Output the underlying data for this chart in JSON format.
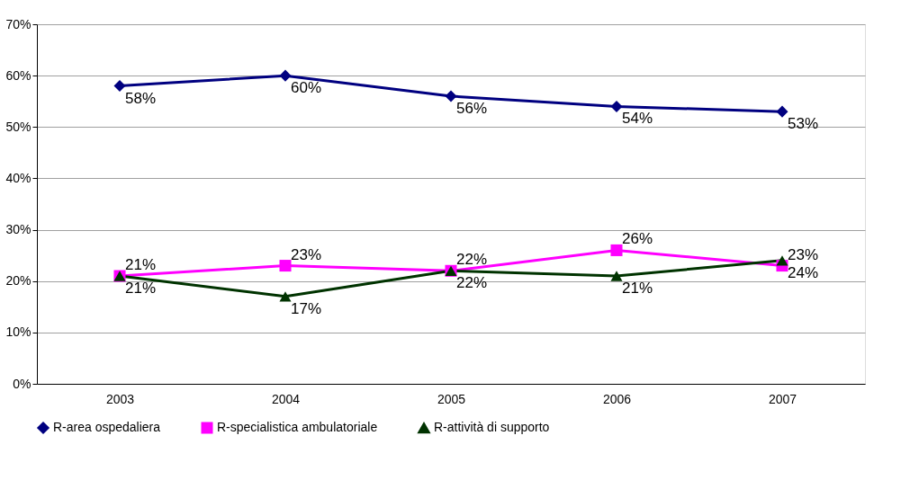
{
  "chart_data": {
    "type": "line",
    "categories": [
      "2003",
      "2004",
      "2005",
      "2006",
      "2007"
    ],
    "series": [
      {
        "name": "R-area ospedaliera",
        "color": "#000080",
        "marker": "diamond",
        "values": [
          58,
          60,
          56,
          54,
          53
        ],
        "value_labels": [
          "58%",
          "60%",
          "56%",
          "54%",
          "53%"
        ]
      },
      {
        "name": "R-specialistica ambulatoriale",
        "color": "#ff00ff",
        "marker": "square",
        "values": [
          21,
          23,
          22,
          26,
          23
        ],
        "value_labels": [
          "21%",
          "23%",
          "22%",
          "26%",
          "23%"
        ]
      },
      {
        "name": "R-attività di supporto",
        "color": "#003300",
        "marker": "triangle",
        "values": [
          21,
          17,
          22,
          21,
          24
        ],
        "value_labels": [
          "21%",
          "17%",
          "22%",
          "21%",
          "24%"
        ]
      }
    ],
    "ylim": [
      0,
      70
    ],
    "yticks": [
      {
        "value": 0,
        "label": "0%"
      },
      {
        "value": 10,
        "label": "10%"
      },
      {
        "value": 20,
        "label": "20%"
      },
      {
        "value": 30,
        "label": "30%"
      },
      {
        "value": 40,
        "label": "40%"
      },
      {
        "value": 50,
        "label": "50%"
      },
      {
        "value": 60,
        "label": "60%"
      },
      {
        "value": 70,
        "label": "70%"
      }
    ],
    "grid": "y",
    "legend": "bottom",
    "line_style": "solid"
  }
}
